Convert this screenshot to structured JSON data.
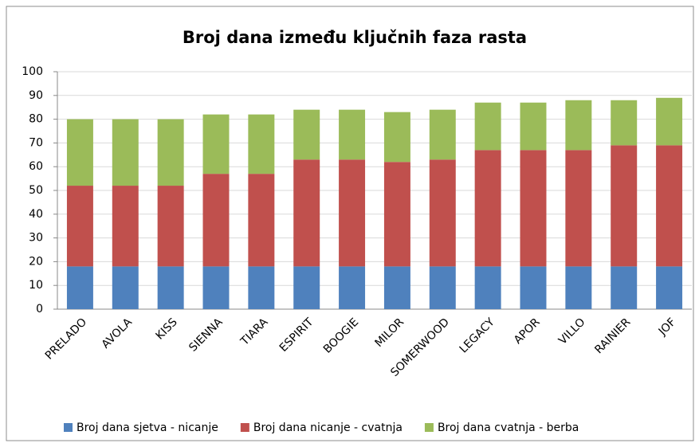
{
  "chart_data": {
    "type": "stacked_bar",
    "title": "Broj dana između ključnih faza rasta",
    "categories": [
      "PRELADO",
      "AVOLA",
      "KISS",
      "SIENNA",
      "TIARA",
      "ESPIRIT",
      "BOOGIE",
      "MILOR",
      "SOMERWOOD",
      "LEGACY",
      "APOR",
      "VILLO",
      "RAINIER",
      "JOF"
    ],
    "series": [
      {
        "name": "Broj dana sjetva - nicanje",
        "color": "#4f81bd",
        "values": [
          18,
          18,
          18,
          18,
          18,
          18,
          18,
          18,
          18,
          18,
          18,
          18,
          18,
          18
        ]
      },
      {
        "name": "Broj dana nicanje - cvatnja",
        "color": "#c0504d",
        "values": [
          34,
          34,
          34,
          39,
          39,
          45,
          45,
          44,
          45,
          49,
          49,
          49,
          51,
          51
        ]
      },
      {
        "name": "Broj dana cvatnja - berba",
        "color": "#9bbb59",
        "values": [
          28,
          28,
          28,
          25,
          25,
          21,
          21,
          21,
          21,
          20,
          20,
          21,
          19,
          20
        ]
      }
    ],
    "ylim": [
      0,
      100
    ],
    "yticks": [
      0,
      10,
      20,
      30,
      40,
      50,
      60,
      70,
      80,
      90,
      100
    ],
    "grid": true,
    "legend": "bottom"
  }
}
